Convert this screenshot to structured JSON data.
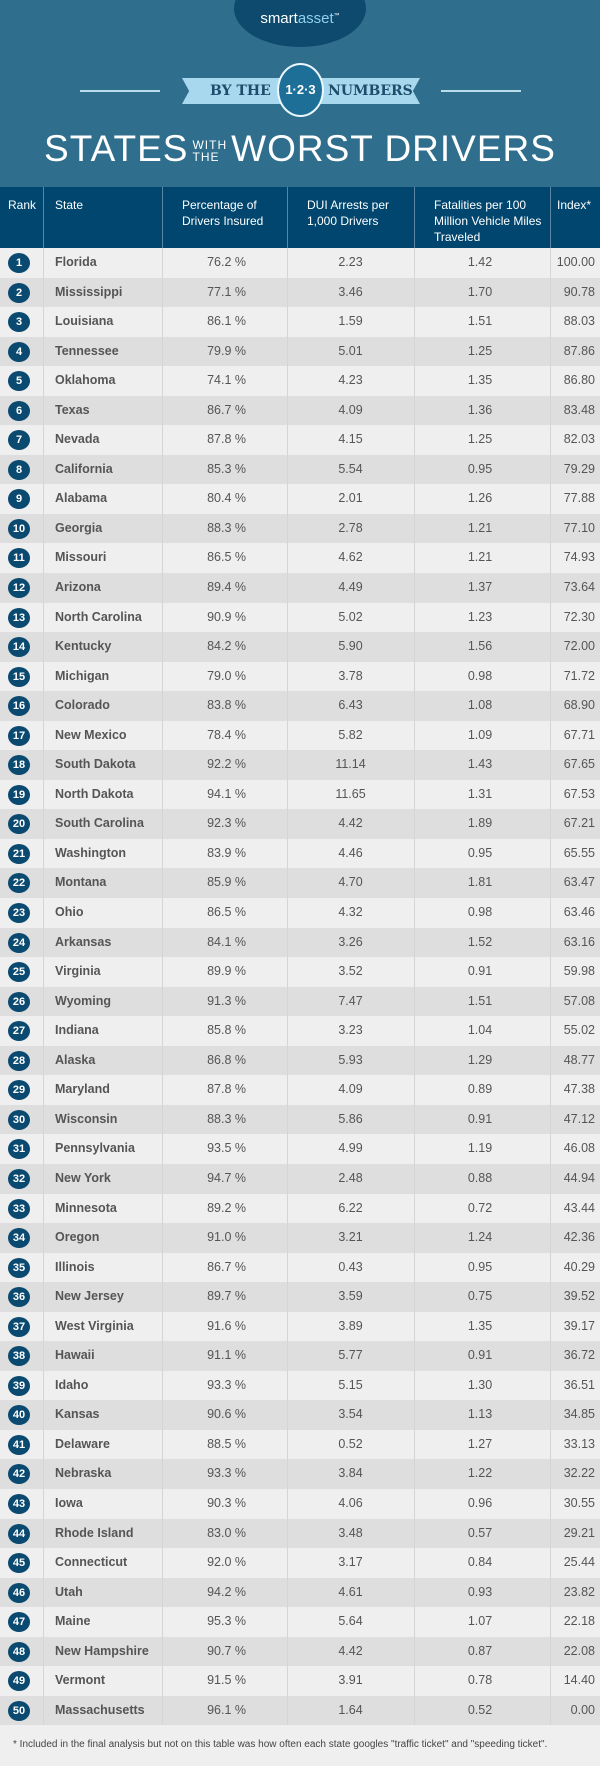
{
  "brand": {
    "logo_text_a": "smart",
    "logo_text_b": "asset",
    "tm": "™"
  },
  "banner": {
    "left": "BY THE",
    "numbers": "1·2·3",
    "right": "NUMBERS"
  },
  "title": {
    "part1": "STATES",
    "small1": "WITH",
    "small2": "THE",
    "part2": "WORST DRIVERS"
  },
  "colors": {
    "background": "#2f6f8d",
    "header": "#00466e",
    "badge": "#0b4a70",
    "row_light": "#efefef",
    "row_dark": "#dedede"
  },
  "table": {
    "headers": [
      "Rank",
      "State",
      "Percentage of Drivers Insured",
      "DUI Arrests per 1,000 Drivers",
      "Fatalities per 100 Million Vehicle Miles Traveled",
      "Index*"
    ],
    "rows": [
      [
        "1",
        "Florida",
        "76.2 %",
        "2.23",
        "1.42",
        "100.00"
      ],
      [
        "2",
        "Mississippi",
        "77.1 %",
        "3.46",
        "1.70",
        "90.78"
      ],
      [
        "3",
        "Louisiana",
        "86.1 %",
        "1.59",
        "1.51",
        "88.03"
      ],
      [
        "4",
        "Tennessee",
        "79.9 %",
        "5.01",
        "1.25",
        "87.86"
      ],
      [
        "5",
        "Oklahoma",
        "74.1 %",
        "4.23",
        "1.35",
        "86.80"
      ],
      [
        "6",
        "Texas",
        "86.7 %",
        "4.09",
        "1.36",
        "83.48"
      ],
      [
        "7",
        "Nevada",
        "87.8 %",
        "4.15",
        "1.25",
        "82.03"
      ],
      [
        "8",
        "California",
        "85.3 %",
        "5.54",
        "0.95",
        "79.29"
      ],
      [
        "9",
        "Alabama",
        "80.4 %",
        "2.01",
        "1.26",
        "77.88"
      ],
      [
        "10",
        "Georgia",
        "88.3 %",
        "2.78",
        "1.21",
        "77.10"
      ],
      [
        "11",
        "Missouri",
        "86.5 %",
        "4.62",
        "1.21",
        "74.93"
      ],
      [
        "12",
        "Arizona",
        "89.4 %",
        "4.49",
        "1.37",
        "73.64"
      ],
      [
        "13",
        "North Carolina",
        "90.9 %",
        "5.02",
        "1.23",
        "72.30"
      ],
      [
        "14",
        "Kentucky",
        "84.2 %",
        "5.90",
        "1.56",
        "72.00"
      ],
      [
        "15",
        "Michigan",
        "79.0 %",
        "3.78",
        "0.98",
        "71.72"
      ],
      [
        "16",
        "Colorado",
        "83.8 %",
        "6.43",
        "1.08",
        "68.90"
      ],
      [
        "17",
        "New Mexico",
        "78.4 %",
        "5.82",
        "1.09",
        "67.71"
      ],
      [
        "18",
        "South Dakota",
        "92.2 %",
        "11.14",
        "1.43",
        "67.65"
      ],
      [
        "19",
        "North Dakota",
        "94.1 %",
        "11.65",
        "1.31",
        "67.53"
      ],
      [
        "20",
        "South Carolina",
        "92.3 %",
        "4.42",
        "1.89",
        "67.21"
      ],
      [
        "21",
        "Washington",
        "83.9 %",
        "4.46",
        "0.95",
        "65.55"
      ],
      [
        "22",
        "Montana",
        "85.9 %",
        "4.70",
        "1.81",
        "63.47"
      ],
      [
        "23",
        "Ohio",
        "86.5 %",
        "4.32",
        "0.98",
        "63.46"
      ],
      [
        "24",
        "Arkansas",
        "84.1 %",
        "3.26",
        "1.52",
        "63.16"
      ],
      [
        "25",
        "Virginia",
        "89.9 %",
        "3.52",
        "0.91",
        "59.98"
      ],
      [
        "26",
        "Wyoming",
        "91.3 %",
        "7.47",
        "1.51",
        "57.08"
      ],
      [
        "27",
        "Indiana",
        "85.8 %",
        "3.23",
        "1.04",
        "55.02"
      ],
      [
        "28",
        "Alaska",
        "86.8 %",
        "5.93",
        "1.29",
        "48.77"
      ],
      [
        "29",
        "Maryland",
        "87.8 %",
        "4.09",
        "0.89",
        "47.38"
      ],
      [
        "30",
        "Wisconsin",
        "88.3 %",
        "5.86",
        "0.91",
        "47.12"
      ],
      [
        "31",
        "Pennsylvania",
        "93.5 %",
        "4.99",
        "1.19",
        "46.08"
      ],
      [
        "32",
        "New York",
        "94.7 %",
        "2.48",
        "0.88",
        "44.94"
      ],
      [
        "33",
        "Minnesota",
        "89.2 %",
        "6.22",
        "0.72",
        "43.44"
      ],
      [
        "34",
        "Oregon",
        "91.0 %",
        "3.21",
        "1.24",
        "42.36"
      ],
      [
        "35",
        "Illinois",
        "86.7 %",
        "0.43",
        "0.95",
        "40.29"
      ],
      [
        "36",
        "New Jersey",
        "89.7 %",
        "3.59",
        "0.75",
        "39.52"
      ],
      [
        "37",
        "West Virginia",
        "91.6 %",
        "3.89",
        "1.35",
        "39.17"
      ],
      [
        "38",
        "Hawaii",
        "91.1 %",
        "5.77",
        "0.91",
        "36.72"
      ],
      [
        "39",
        "Idaho",
        "93.3 %",
        "5.15",
        "1.30",
        "36.51"
      ],
      [
        "40",
        "Kansas",
        "90.6 %",
        "3.54",
        "1.13",
        "34.85"
      ],
      [
        "41",
        "Delaware",
        "88.5 %",
        "0.52",
        "1.27",
        "33.13"
      ],
      [
        "42",
        "Nebraska",
        "93.3 %",
        "3.84",
        "1.22",
        "32.22"
      ],
      [
        "43",
        "Iowa",
        "90.3 %",
        "4.06",
        "0.96",
        "30.55"
      ],
      [
        "44",
        "Rhode Island",
        "83.0 %",
        "3.48",
        "0.57",
        "29.21"
      ],
      [
        "45",
        "Connecticut",
        "92.0 %",
        "3.17",
        "0.84",
        "25.44"
      ],
      [
        "46",
        "Utah",
        "94.2 %",
        "4.61",
        "0.93",
        "23.82"
      ],
      [
        "47",
        "Maine",
        "95.3 %",
        "5.64",
        "1.07",
        "22.18"
      ],
      [
        "48",
        "New Hampshire",
        "90.7 %",
        "4.42",
        "0.87",
        "22.08"
      ],
      [
        "49",
        "Vermont",
        "91.5 %",
        "3.91",
        "0.78",
        "14.40"
      ],
      [
        "50",
        "Massachusetts",
        "96.1 %",
        "1.64",
        "0.52",
        "0.00"
      ]
    ]
  },
  "footnote": "* Included in the final analysis but not on this table was how often each state googles \"traffic ticket\" and \"speeding ticket\"."
}
